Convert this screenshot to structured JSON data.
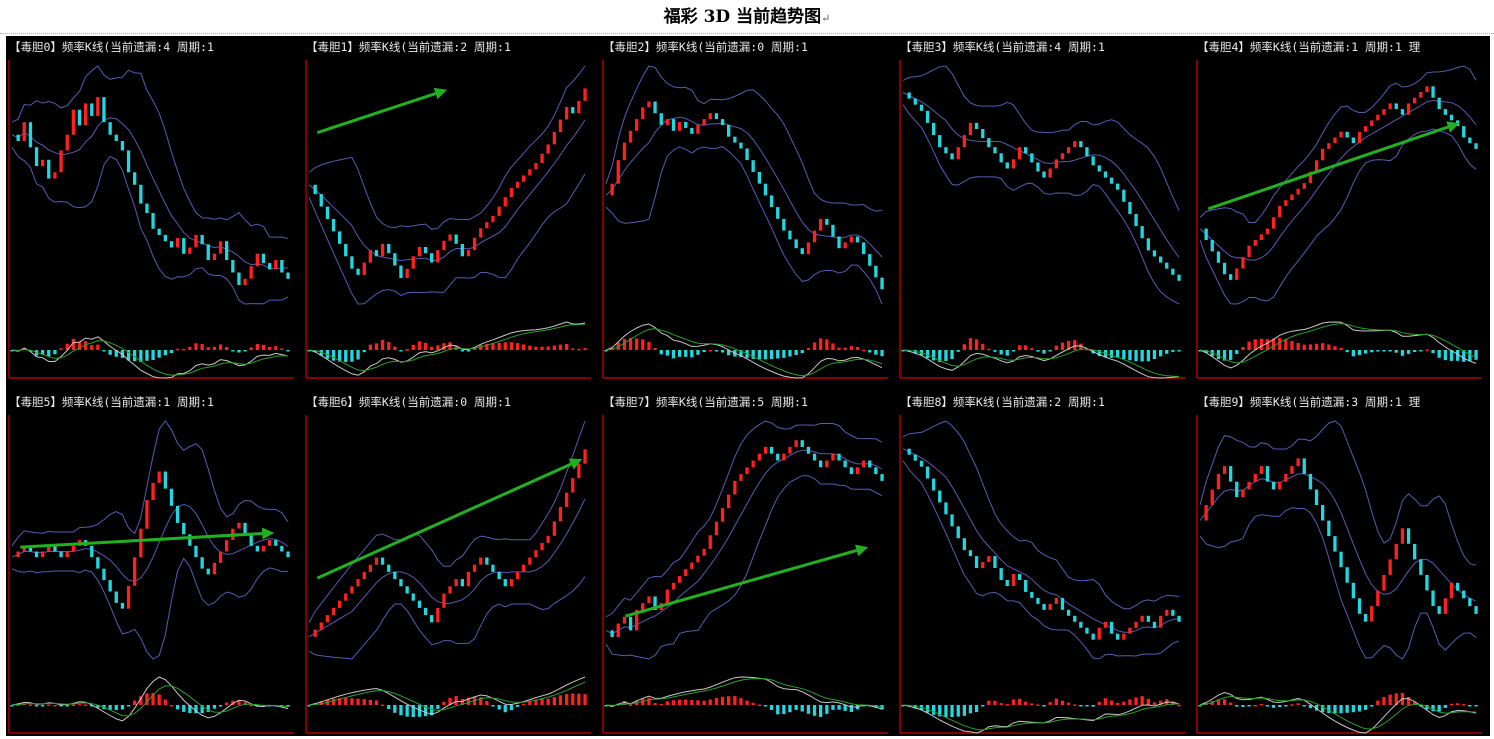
{
  "page": {
    "title": "福彩 3D 当前趋势图",
    "title_mark": "↵"
  },
  "colors": {
    "background": "#000000",
    "up_candle": "#ff2020",
    "down_candle": "#22d7e0",
    "axis": "#b00000",
    "band": "#5a5ab4",
    "oscillator_fast": "#c8c8c8",
    "oscillator_slow": "#2aa02a",
    "trend_arrow": "#22b022"
  },
  "chart_data": [
    {
      "type": "line",
      "title": "【毒胆0】频率K线(当前遗漏:4 周期:1",
      "close": [
        60,
        58,
        64,
        56,
        50,
        52,
        46,
        48,
        55,
        60,
        68,
        63,
        70,
        66,
        72,
        64,
        60,
        58,
        55,
        48,
        44,
        38,
        35,
        30,
        28,
        26,
        24,
        27,
        22,
        24,
        28,
        25,
        20,
        22,
        26,
        20,
        16,
        12,
        14,
        18,
        22,
        19,
        17,
        20,
        16,
        14
      ],
      "arrow": null
    },
    {
      "type": "line",
      "title": "【毒胆1】频率K线(当前遗漏:2 周期:1",
      "close": [
        45,
        42,
        38,
        34,
        30,
        26,
        22,
        18,
        16,
        20,
        24,
        22,
        26,
        23,
        19,
        15,
        18,
        22,
        25,
        23,
        20,
        24,
        27,
        29,
        26,
        22,
        24,
        28,
        31,
        33,
        35,
        38,
        41,
        44,
        46,
        48,
        50,
        52,
        55,
        58,
        62,
        66,
        70,
        68,
        72,
        76
      ],
      "arrow": [
        3,
        72,
        50,
        90
      ]
    },
    {
      "type": "line",
      "title": "【毒胆2】频率K线(当前遗漏:0 周期:1",
      "close": [
        40,
        44,
        52,
        58,
        62,
        66,
        70,
        72,
        68,
        64,
        66,
        62,
        65,
        63,
        61,
        64,
        66,
        68,
        66,
        64,
        60,
        58,
        56,
        52,
        48,
        44,
        40,
        36,
        32,
        28,
        25,
        22,
        20,
        24,
        28,
        32,
        30,
        26,
        22,
        24,
        26,
        24,
        20,
        16,
        12,
        8
      ],
      "arrow": null
    },
    {
      "type": "line",
      "title": "【毒胆3】频率K线(当前遗漏:4 周期:1",
      "close": [
        70,
        68,
        66,
        64,
        60,
        56,
        52,
        50,
        48,
        52,
        56,
        60,
        58,
        55,
        52,
        50,
        47,
        45,
        48,
        52,
        50,
        47,
        44,
        42,
        45,
        48,
        50,
        52,
        54,
        52,
        49,
        46,
        44,
        42,
        40,
        38,
        34,
        30,
        26,
        22,
        18,
        16,
        14,
        12,
        10,
        8
      ],
      "arrow": null
    },
    {
      "type": "line",
      "title": "【毒胆4】频率K线(当前遗漏:1 周期:1 理",
      "close": [
        30,
        26,
        22,
        18,
        14,
        12,
        16,
        20,
        24,
        26,
        28,
        30,
        34,
        38,
        40,
        42,
        44,
        46,
        50,
        54,
        58,
        60,
        62,
        64,
        62,
        60,
        64,
        66,
        68,
        70,
        72,
        74,
        72,
        70,
        74,
        76,
        78,
        80,
        76,
        72,
        70,
        68,
        66,
        62,
        60,
        58
      ],
      "arrow": [
        3,
        40,
        94,
        76
      ]
    },
    {
      "type": "line",
      "title": "【毒胆5】频率K线(当前遗漏:1 周期:1",
      "close": [
        40,
        42,
        44,
        42,
        40,
        42,
        44,
        42,
        40,
        42,
        44,
        46,
        44,
        40,
        36,
        32,
        28,
        24,
        22,
        30,
        40,
        50,
        60,
        66,
        70,
        64,
        58,
        52,
        48,
        44,
        40,
        36,
        34,
        38,
        42,
        46,
        50,
        52,
        48,
        44,
        42,
        44,
        46,
        44,
        42,
        40
      ],
      "arrow": [
        3,
        47,
        95,
        53
      ]
    },
    {
      "type": "line",
      "title": "【毒胆6】频率K线(当前遗漏:0 周期:1",
      "close": [
        30,
        32,
        34,
        36,
        38,
        40,
        42,
        44,
        46,
        48,
        50,
        52,
        50,
        48,
        46,
        44,
        42,
        40,
        38,
        36,
        34,
        38,
        42,
        44,
        46,
        44,
        48,
        50,
        52,
        50,
        48,
        46,
        44,
        46,
        48,
        50,
        52,
        54,
        56,
        58,
        62,
        66,
        70,
        74,
        78,
        82
      ],
      "arrow": [
        3,
        34,
        99,
        84
      ]
    },
    {
      "type": "line",
      "title": "【毒胆7】频率K线(当前遗漏:5 周期:1",
      "close": [
        30,
        28,
        32,
        34,
        30,
        36,
        38,
        40,
        36,
        38,
        42,
        44,
        46,
        48,
        50,
        52,
        54,
        58,
        62,
        66,
        70,
        74,
        76,
        78,
        80,
        82,
        84,
        82,
        80,
        82,
        84,
        86,
        84,
        82,
        80,
        78,
        80,
        82,
        80,
        78,
        76,
        78,
        80,
        78,
        76,
        74
      ],
      "arrow": [
        7,
        18,
        95,
        47
      ]
    },
    {
      "type": "line",
      "title": "【毒胆8】频率K线(当前遗漏:2 周期:1",
      "close": [
        80,
        78,
        76,
        74,
        70,
        66,
        62,
        58,
        54,
        50,
        46,
        44,
        40,
        42,
        44,
        40,
        36,
        34,
        38,
        36,
        32,
        30,
        28,
        26,
        28,
        30,
        26,
        24,
        22,
        20,
        18,
        16,
        20,
        22,
        18,
        16,
        18,
        20,
        22,
        24,
        22,
        20,
        24,
        26,
        24,
        22
      ],
      "arrow": null
    },
    {
      "type": "line",
      "title": "【毒胆9】频率K线(当前遗漏:3 周期:1 理",
      "close": [
        56,
        60,
        64,
        68,
        70,
        66,
        62,
        64,
        66,
        68,
        70,
        66,
        64,
        66,
        68,
        70,
        72,
        68,
        64,
        60,
        56,
        52,
        48,
        44,
        40,
        36,
        32,
        30,
        34,
        38,
        42,
        46,
        50,
        54,
        50,
        46,
        42,
        38,
        34,
        32,
        36,
        40,
        38,
        36,
        34,
        32
      ],
      "arrow": null
    }
  ]
}
